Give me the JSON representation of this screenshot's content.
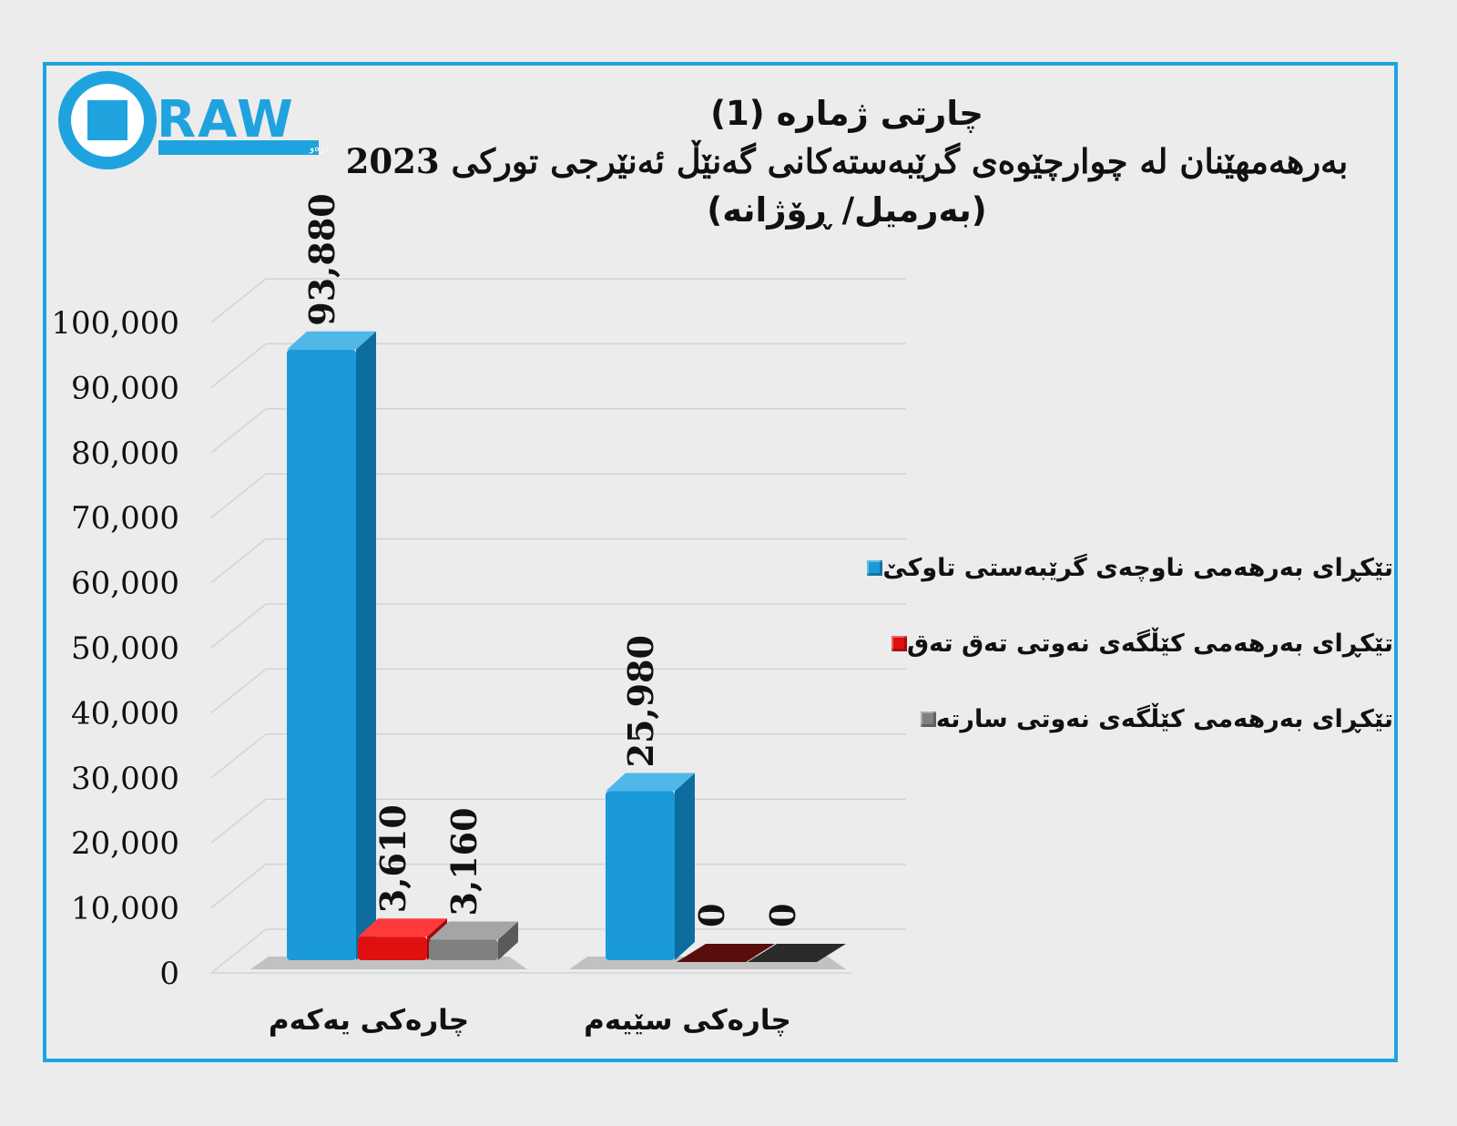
{
  "logo": {
    "wordmark": "DRAW",
    "tagline": "دامەزراوەی میدیایی درەو"
  },
  "title": {
    "line1": "چارتی ژمارە (1)",
    "line2": "بەرهەمهێنان لە چوارچێوەی گرێبەستەکانی گەنێڵ ئەنێرجی تورکی 2023",
    "line3": "(بەرمیل/ ڕۆژانە)"
  },
  "colors": {
    "frame": "#1fa3df",
    "series": [
      "#1a9ad8",
      "#e01010",
      "#808080"
    ],
    "zero_bar_red": "#5a0d0d",
    "zero_bar_gray": "#2a2a2a"
  },
  "chart_data": {
    "type": "bar",
    "categories": [
      "چارەکی یەکەم",
      "چارەکی سێیەم"
    ],
    "series": [
      {
        "name": "تێکڕای بەرهەمی ناوچەی گرێبەستی تاوکێ",
        "values": [
          93880,
          25980
        ]
      },
      {
        "name": "تێکڕای بەرهەمی کێڵگەی نەوتی تەق تەق",
        "values": [
          3610,
          0
        ]
      },
      {
        "name": "تێکڕای بەرهەمی کێڵگەی نەوتی سارتە",
        "values": [
          3160,
          0
        ]
      }
    ],
    "data_labels": [
      [
        "93,880",
        "3,610",
        "3,160"
      ],
      [
        "25,980",
        "0",
        "0"
      ]
    ],
    "y_ticks": [
      "0",
      "10,000",
      "20,000",
      "30,000",
      "40,000",
      "50,000",
      "60,000",
      "70,000",
      "80,000",
      "90,000",
      "100,000"
    ],
    "ylim": [
      0,
      100000
    ],
    "grid": true,
    "legend_position": "right"
  }
}
